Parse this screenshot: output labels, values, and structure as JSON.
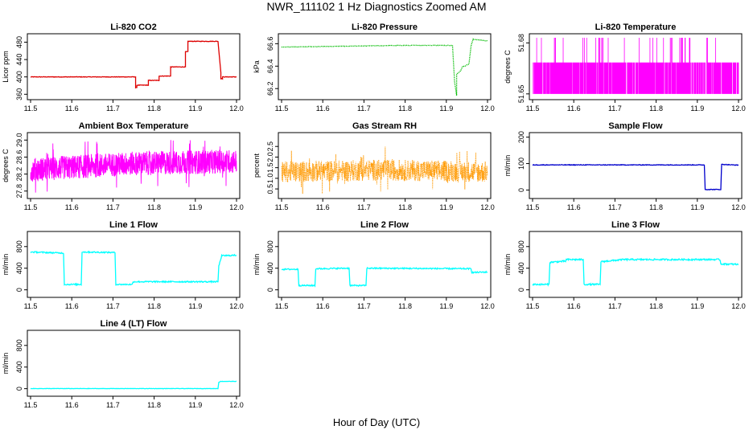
{
  "figure": {
    "title": "NWR_111102  1 Hz Diagnostics Zoomed AM",
    "xlabel": "Hour of Day (UTC)"
  },
  "chart_data": [
    {
      "type": "line",
      "title": "Li-820 CO2",
      "ylabel": "Licor ppm",
      "color": "#dd0000",
      "xlim": [
        11.5,
        12.0
      ],
      "ylim": [
        355,
        492
      ],
      "xticks": [
        "11.5",
        "11.6",
        "11.7",
        "11.8",
        "11.9",
        "12.0"
      ],
      "yticks": [
        {
          "v": 360,
          "label": "360"
        },
        {
          "v": 400,
          "label": "400"
        },
        {
          "v": 440,
          "label": "440"
        },
        {
          "v": 480,
          "label": "480"
        }
      ],
      "x": [
        11.5,
        11.755,
        11.755,
        11.758,
        11.758,
        11.786,
        11.786,
        11.812,
        11.812,
        11.84,
        11.84,
        11.876,
        11.876,
        11.882,
        11.882,
        11.955,
        11.955,
        11.962,
        11.962,
        11.966,
        11.966,
        12.0
      ],
      "y": [
        400,
        400,
        375,
        375,
        381,
        381,
        392,
        392,
        402,
        402,
        423,
        423,
        458,
        458,
        482,
        482,
        482,
        410,
        396,
        396,
        400,
        400
      ],
      "noise": 0.6
    },
    {
      "type": "line",
      "title": "Li-820 Pressure",
      "ylabel": "kPa",
      "color": "#00bb00",
      "dotted": true,
      "xlim": [
        11.5,
        12.0
      ],
      "ylim": [
        66.13,
        66.66
      ],
      "xticks": [
        "11.5",
        "11.6",
        "11.7",
        "11.8",
        "11.9",
        "12.0"
      ],
      "yticks": [
        {
          "v": 66.2,
          "label": "66.2"
        },
        {
          "v": 66.4,
          "label": "66.4"
        },
        {
          "v": 66.6,
          "label": "66.6"
        }
      ],
      "x": [
        11.5,
        11.6,
        11.7,
        11.8,
        11.9,
        11.915,
        11.92,
        11.925,
        11.925,
        11.935,
        11.935,
        11.94,
        11.945,
        11.955,
        11.96,
        11.965,
        12.0
      ],
      "y": [
        66.57,
        66.575,
        66.58,
        66.585,
        66.585,
        66.585,
        66.26,
        66.14,
        66.33,
        66.36,
        66.36,
        66.4,
        66.4,
        66.42,
        66.58,
        66.64,
        66.625
      ],
      "noise": 0.002
    },
    {
      "type": "spikes",
      "title": "Li-820 Temperature",
      "ylabel": "degrees C",
      "color": "#ff00ff",
      "xlim": [
        11.5,
        12.0
      ],
      "ylim": [
        51.6485,
        51.6835
      ],
      "xticks": [
        "11.5",
        "11.6",
        "11.7",
        "11.8",
        "11.9",
        "12.0"
      ],
      "yticks": [
        {
          "v": 51.65,
          "label": "51.65"
        },
        {
          "v": 51.68,
          "label": "51.68"
        }
      ],
      "low": 51.65,
      "mid": 51.6685,
      "high": 51.683,
      "density": 0.75,
      "spike_frac": 0.06
    },
    {
      "type": "noise",
      "title": "Ambient Box Temperature",
      "ylabel": "degrees C",
      "color": "#ff00ff",
      "xlim": [
        11.5,
        12.0
      ],
      "ylim": [
        27.7,
        29.1
      ],
      "xticks": [
        "11.5",
        "11.6",
        "11.7",
        "11.8",
        "11.9",
        "12.0"
      ],
      "yticks": [
        {
          "v": 27.8,
          "label": "27.8"
        },
        {
          "v": 28.2,
          "label": "28.2"
        },
        {
          "v": 28.6,
          "label": "28.6"
        },
        {
          "v": 29.0,
          "label": "29.0"
        }
      ],
      "base": [
        28.3,
        28.45,
        28.5
      ],
      "amp": 0.28,
      "n": 1200
    },
    {
      "type": "noise",
      "title": "Gas Stream RH",
      "ylabel": "percent",
      "color": "#ff9900",
      "dotted": true,
      "xlim": [
        11.5,
        12.0
      ],
      "ylim": [
        0.2,
        3.0
      ],
      "xticks": [
        "11.5",
        "11.6",
        "11.7",
        "11.8",
        "11.9",
        "12.0"
      ],
      "yticks": [
        {
          "v": 0.5,
          "label": "0.5"
        },
        {
          "v": 1.0,
          "label": "1.0"
        },
        {
          "v": 1.5,
          "label": "1.5"
        },
        {
          "v": 2.0,
          "label": "2.0"
        },
        {
          "v": 2.5,
          "label": "2.5"
        }
      ],
      "base": [
        1.3,
        1.4,
        1.3
      ],
      "amp": 0.5,
      "n": 900
    },
    {
      "type": "line",
      "title": "Sample Flow",
      "ylabel": "ml/min",
      "color": "#0000cc",
      "xlim": [
        11.5,
        12.0
      ],
      "ylim": [
        -20,
        205
      ],
      "xticks": [
        "11.5",
        "11.6",
        "11.7",
        "11.8",
        "11.9",
        "12.0"
      ],
      "yticks": [
        {
          "v": 0,
          "label": "0"
        },
        {
          "v": 100,
          "label": "100"
        },
        {
          "v": 200,
          "label": "200"
        }
      ],
      "x": [
        11.5,
        11.917,
        11.919,
        11.957,
        11.959,
        12.0
      ],
      "y": [
        95,
        95,
        2,
        2,
        97,
        94
      ],
      "noise": 1.2
    },
    {
      "type": "line",
      "title": "Line 1 Flow",
      "ylabel": "ml/min",
      "color": "#00ffff",
      "xlim": [
        11.5,
        12.0
      ],
      "ylim": [
        -80,
        1020
      ],
      "xticks": [
        "11.5",
        "11.6",
        "11.7",
        "11.8",
        "11.9",
        "12.0"
      ],
      "yticks": [
        {
          "v": 0,
          "label": "0"
        },
        {
          "v": 400,
          "label": "400"
        },
        {
          "v": 800,
          "label": "800"
        }
      ],
      "x": [
        11.5,
        11.58,
        11.582,
        11.623,
        11.625,
        11.705,
        11.707,
        11.747,
        11.749,
        11.955,
        11.957,
        11.964,
        12.0
      ],
      "y": [
        700,
        680,
        100,
        100,
        700,
        690,
        100,
        100,
        150,
        150,
        440,
        630,
        640
      ],
      "noise": 12
    },
    {
      "type": "line",
      "title": "Line 2 Flow",
      "ylabel": "ml/min",
      "color": "#00ffff",
      "xlim": [
        11.5,
        12.0
      ],
      "ylim": [
        -80,
        1020
      ],
      "xticks": [
        "11.5",
        "11.6",
        "11.7",
        "11.8",
        "11.9",
        "12.0"
      ],
      "yticks": [
        {
          "v": 0,
          "label": "0"
        },
        {
          "v": 400,
          "label": "400"
        },
        {
          "v": 800,
          "label": "800"
        }
      ],
      "x": [
        11.5,
        11.54,
        11.542,
        11.581,
        11.583,
        11.664,
        11.666,
        11.705,
        11.707,
        11.96,
        11.962,
        12.0
      ],
      "y": [
        380,
        380,
        80,
        80,
        390,
        400,
        80,
        80,
        400,
        390,
        320,
        330
      ],
      "noise": 12
    },
    {
      "type": "line",
      "title": "Line 3 Flow",
      "ylabel": "ml/min",
      "color": "#00ffff",
      "xlim": [
        11.5,
        12.0
      ],
      "ylim": [
        -80,
        1020
      ],
      "xticks": [
        "11.5",
        "11.6",
        "11.7",
        "11.8",
        "11.9",
        "12.0"
      ],
      "yticks": [
        {
          "v": 0,
          "label": "0"
        },
        {
          "v": 400,
          "label": "400"
        },
        {
          "v": 800,
          "label": "800"
        }
      ],
      "x": [
        11.5,
        11.54,
        11.542,
        11.58,
        11.582,
        11.623,
        11.625,
        11.664,
        11.666,
        11.7,
        11.72,
        11.955,
        11.957,
        12.0
      ],
      "y": [
        100,
        100,
        510,
        530,
        560,
        560,
        100,
        100,
        520,
        545,
        560,
        560,
        480,
        470
      ],
      "noise": 14
    },
    {
      "type": "line",
      "title": "Line 4 (LT) Flow",
      "ylabel": "ml/min",
      "color": "#00ffff",
      "xlim": [
        11.5,
        12.0
      ],
      "ylim": [
        -80,
        1020
      ],
      "xticks": [
        "11.5",
        "11.6",
        "11.7",
        "11.8",
        "11.9",
        "12.0"
      ],
      "yticks": [
        {
          "v": 0,
          "label": "0"
        },
        {
          "v": 400,
          "label": "400"
        },
        {
          "v": 800,
          "label": "800"
        }
      ],
      "x": [
        11.5,
        11.955,
        11.957,
        11.962,
        12.0
      ],
      "y": [
        2,
        2,
        120,
        135,
        135
      ],
      "noise": 3
    }
  ]
}
